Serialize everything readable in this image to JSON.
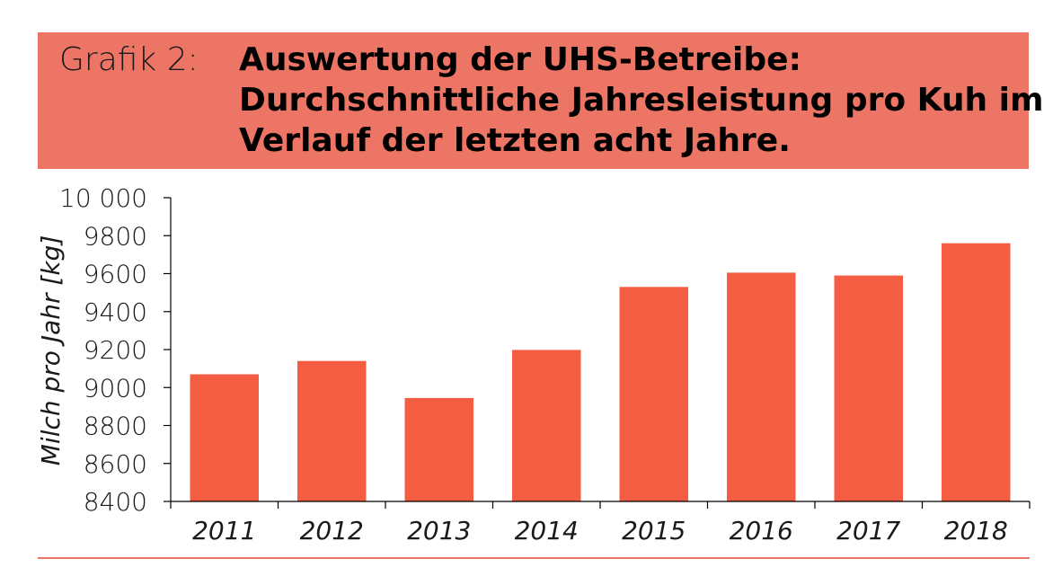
{
  "header": {
    "label": "Grafik 2:",
    "title_lines": [
      "Auswertung der UHS-Betreibe:",
      "Durchschnittliche Jahresleistung pro Kuh im",
      "Verlauf der letzten acht Jahre."
    ]
  },
  "colors": {
    "header_bg": "#ec7565",
    "bar": "#f45d42",
    "axis": "#000000"
  },
  "chart_data": {
    "type": "bar",
    "categories": [
      "2011",
      "2012",
      "2013",
      "2014",
      "2015",
      "2016",
      "2017",
      "2018"
    ],
    "values": [
      9070,
      9140,
      8945,
      9198,
      9530,
      9605,
      9590,
      9760
    ],
    "ylabel": "Milch pro Jahr [kg]",
    "xlabel": "",
    "ylim": [
      8400,
      10000
    ],
    "yticks": [
      8400,
      8600,
      8800,
      9000,
      9200,
      9400,
      9600,
      9800,
      10000
    ],
    "ytick_labels": [
      "8400",
      "8600",
      "8800",
      "9000",
      "9200",
      "9400",
      "9600",
      "9800",
      "10 000"
    ],
    "grid": false,
    "legend": "none"
  }
}
